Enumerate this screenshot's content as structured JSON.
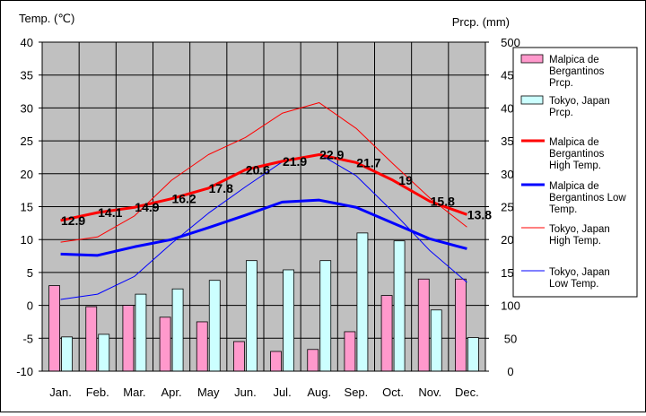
{
  "chart_data": {
    "type": "bar+line",
    "categories": [
      "Jan.",
      "Feb.",
      "Mar.",
      "Apr.",
      "May",
      "Jun.",
      "Jul.",
      "Aug.",
      "Sep.",
      "Oct.",
      "Nov.",
      "Dec."
    ],
    "y_left": {
      "label": "Temp. (℃)",
      "range": [
        -10,
        40
      ],
      "ticks": [
        -10,
        -5,
        0,
        5,
        10,
        15,
        20,
        25,
        30,
        35,
        40
      ]
    },
    "y_right": {
      "label": "Prcp. (mm)",
      "range": [
        0,
        500
      ],
      "ticks": [
        0,
        50,
        100,
        150,
        200,
        250,
        300,
        350,
        400,
        450,
        500
      ]
    },
    "grid": true,
    "legend_position": "right",
    "bar_series": [
      {
        "name": "Malpica de Bergantinos Prcp.",
        "color": "#ff99cc",
        "values": [
          130,
          98,
          100,
          82,
          75,
          45,
          30,
          33,
          60,
          115,
          140,
          140
        ]
      },
      {
        "name": "Tokyo, Japan Prcp.",
        "color": "#ccffff",
        "values": [
          52,
          56,
          117,
          125,
          138,
          168,
          154,
          168,
          210,
          198,
          93,
          51
        ]
      }
    ],
    "line_series": [
      {
        "name": "Malpica de Bergantinos High Temp.",
        "color": "#ff0000",
        "width": "bold",
        "values": [
          12.9,
          14.1,
          14.9,
          16.2,
          17.8,
          20.6,
          21.9,
          22.9,
          21.7,
          19,
          15.8,
          13.8
        ],
        "labels": [
          "12.9",
          "14.1",
          "14.9",
          "16.2",
          "17.8",
          "20.6",
          "21.9",
          "22.9",
          "21.7",
          "19",
          "15.8",
          "13.8"
        ]
      },
      {
        "name": "Malpica de Bergantinos Low Temp.",
        "color": "#0000ff",
        "width": "bold",
        "values": [
          7.8,
          7.6,
          8.9,
          10.0,
          11.8,
          13.7,
          15.7,
          16.0,
          14.9,
          12.5,
          10.1,
          8.6
        ]
      },
      {
        "name": "Tokyo, Japan High Temp.",
        "color": "#ff0000",
        "width": "thin",
        "values": [
          9.6,
          10.4,
          13.6,
          19.0,
          22.9,
          25.5,
          29.2,
          30.8,
          26.9,
          21.5,
          16.3,
          11.9
        ]
      },
      {
        "name": "Tokyo, Japan Low Temp.",
        "color": "#0000ff",
        "width": "thin",
        "values": [
          0.9,
          1.7,
          4.4,
          9.4,
          14.0,
          18.0,
          21.8,
          23.0,
          19.7,
          14.2,
          8.3,
          3.5
        ]
      }
    ]
  },
  "legend": [
    {
      "lines": [
        "Malpica de",
        "Bergantinos",
        "Prcp."
      ],
      "kind": "box",
      "color": "#ff99cc"
    },
    {
      "lines": [
        "Tokyo, Japan",
        "Prcp."
      ],
      "kind": "box",
      "color": "#ccffff"
    },
    {
      "lines": [
        "Malpica de",
        "Bergantinos",
        "High Temp."
      ],
      "kind": "line",
      "color": "#ff0000",
      "width": "bold"
    },
    {
      "lines": [
        "Malpica de",
        "Bergantinos Low",
        "Temp."
      ],
      "kind": "line",
      "color": "#0000ff",
      "width": "bold"
    },
    {
      "lines": [
        "Tokyo, Japan",
        "High Temp."
      ],
      "kind": "line",
      "color": "#ff0000",
      "width": "thin"
    },
    {
      "lines": [
        "Tokyo, Japan",
        "Low Temp."
      ],
      "kind": "line",
      "color": "#0000ff",
      "width": "thin"
    }
  ]
}
